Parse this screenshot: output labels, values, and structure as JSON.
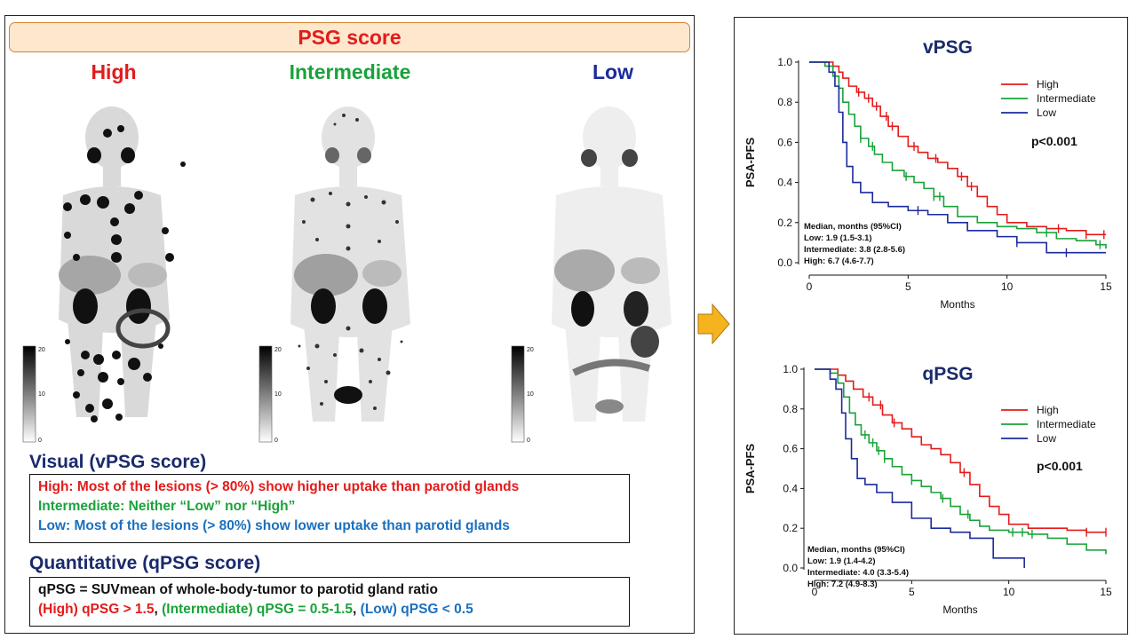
{
  "colors": {
    "high": "#e31b1b",
    "intermediate": "#1aa23a",
    "low": "#1b2a9c",
    "low_text": "#1a70c0",
    "navy": "#1a2a6c"
  },
  "header": {
    "title": "PSG score"
  },
  "columns": [
    {
      "label": "High",
      "color": "#e31b1b",
      "scale_ticks": [
        "20",
        "10",
        "0"
      ]
    },
    {
      "label": "Intermediate",
      "color": "#1aa23a",
      "scale_ticks": [
        "20",
        "10",
        "0"
      ]
    },
    {
      "label": "Low",
      "color": "#1b2a9c",
      "scale_ticks": [
        "20",
        "10",
        "0"
      ]
    }
  ],
  "visual": {
    "title": "Visual (vPSG score)",
    "lines": [
      {
        "text": "High: Most of the lesions (> 80%) show higher uptake than parotid glands",
        "color": "#e31b1b"
      },
      {
        "text": "Intermediate: Neither “Low” nor “High”",
        "color": "#1aa23a"
      },
      {
        "text": "Low: Most of the lesions (> 80%) show lower uptake than parotid glands",
        "color": "#1a70c0"
      }
    ]
  },
  "quantitative": {
    "title": "Quantitative (qPSG score)",
    "formula": "qPSG = SUVmean of whole-body-tumor to parotid gland ratio",
    "ranges": [
      {
        "text": "(High) qPSG > 1.5",
        "color": "#e31b1b"
      },
      {
        "text": ", ",
        "color": "#111111"
      },
      {
        "text": "(Intermediate) qPSG = 0.5-1.5",
        "color": "#1aa23a"
      },
      {
        "text": ", ",
        "color": "#111111"
      },
      {
        "text": "(Low) qPSG < 0.5",
        "color": "#1a70c0"
      }
    ]
  },
  "chart_data": [
    {
      "type": "line",
      "title": "vPSG",
      "xlabel": "Months",
      "ylabel": "PSA-PFS",
      "xlim": [
        0,
        15
      ],
      "ylim": [
        0,
        1
      ],
      "xticks": [
        "0",
        "5",
        "10",
        "15"
      ],
      "yticks": [
        "0.0",
        "0.2",
        "0.4",
        "0.6",
        "0.8",
        "1.0"
      ],
      "pvalue": "p<0.001",
      "legend": [
        "High",
        "Intermediate",
        "Low"
      ],
      "legend_position": "top-right",
      "median_text": [
        "Median, months (95%CI)",
        "Low: 1.9 (1.5-3.1)",
        "Intermediate: 3.8 (2.8-5.6)",
        "High: 6.7 (4.6-7.7)"
      ],
      "series": [
        {
          "name": "High",
          "color": "#e31b1b",
          "x": [
            0,
            0.8,
            1.2,
            1.5,
            1.7,
            2.0,
            2.4,
            2.8,
            3.2,
            3.6,
            4.0,
            4.5,
            5.0,
            5.5,
            6.0,
            6.5,
            7.0,
            7.5,
            8.0,
            8.5,
            9.0,
            9.5,
            10.0,
            11.0,
            12.0,
            13.0,
            14.0,
            15.0
          ],
          "y": [
            1.0,
            1.0,
            0.98,
            0.95,
            0.92,
            0.88,
            0.85,
            0.82,
            0.78,
            0.73,
            0.68,
            0.63,
            0.58,
            0.55,
            0.52,
            0.5,
            0.47,
            0.43,
            0.38,
            0.33,
            0.28,
            0.24,
            0.2,
            0.18,
            0.17,
            0.16,
            0.14,
            0.14
          ],
          "censor_x": [
            2.5,
            3.0,
            3.4,
            3.9,
            4.2,
            5.3,
            6.4,
            7.7,
            8.2,
            12.6,
            14.0,
            14.9
          ]
        },
        {
          "name": "Intermediate",
          "color": "#1aa23a",
          "x": [
            0,
            0.8,
            1.2,
            1.5,
            1.7,
            2.0,
            2.3,
            2.6,
            3.0,
            3.3,
            3.7,
            4.2,
            4.8,
            5.3,
            5.8,
            6.3,
            6.8,
            7.5,
            8.5,
            9.5,
            10.5,
            11.5,
            12.5,
            13.5,
            14.5,
            15.0
          ],
          "y": [
            1.0,
            0.98,
            0.93,
            0.87,
            0.8,
            0.74,
            0.68,
            0.62,
            0.58,
            0.54,
            0.5,
            0.46,
            0.43,
            0.4,
            0.37,
            0.33,
            0.28,
            0.23,
            0.2,
            0.18,
            0.17,
            0.15,
            0.12,
            0.11,
            0.09,
            0.07
          ],
          "censor_x": [
            2.6,
            3.2,
            4.9,
            6.3,
            6.6,
            12.0,
            14.7
          ]
        },
        {
          "name": "Low",
          "color": "#1b2a9c",
          "x": [
            0,
            1.0,
            1.3,
            1.5,
            1.7,
            1.9,
            2.2,
            2.6,
            3.2,
            4.0,
            5.0,
            6.0,
            7.0,
            8.0,
            9.5,
            10.5,
            12.0,
            15.0
          ],
          "y": [
            1.0,
            0.95,
            0.88,
            0.75,
            0.6,
            0.48,
            0.4,
            0.35,
            0.3,
            0.28,
            0.26,
            0.24,
            0.2,
            0.16,
            0.13,
            0.1,
            0.05,
            0.05
          ],
          "censor_x": [
            5.5,
            10.5,
            13.0
          ]
        }
      ]
    },
    {
      "type": "line",
      "title": "qPSG",
      "xlabel": "Months",
      "ylabel": "PSA-PFS",
      "xlim": [
        0,
        15
      ],
      "ylim": [
        0,
        1
      ],
      "xticks": [
        "0",
        "5",
        "10",
        "15"
      ],
      "yticks": [
        "0.0",
        "0.2",
        "0.4",
        "0.6",
        "0.8",
        "1.0"
      ],
      "pvalue": "p<0.001",
      "legend": [
        "High",
        "Intermediate",
        "Low"
      ],
      "legend_position": "top-right",
      "median_text": [
        "Median, months (95%CI)",
        "Low: 1.9 (1.4-4.2)",
        "Intermediate: 4.0 (3.3-5.4)",
        "High: 7.2 (4.9-8.3)"
      ],
      "series": [
        {
          "name": "High",
          "color": "#e31b1b",
          "x": [
            0,
            0.8,
            1.2,
            1.6,
            2.0,
            2.5,
            3.0,
            3.5,
            4.0,
            4.5,
            5.0,
            5.5,
            6.0,
            6.5,
            7.0,
            7.5,
            8.0,
            8.5,
            9.0,
            9.5,
            10.0,
            11.0,
            12.0,
            13.0,
            14.0,
            15.0
          ],
          "y": [
            1.0,
            1.0,
            0.97,
            0.94,
            0.9,
            0.86,
            0.82,
            0.77,
            0.73,
            0.7,
            0.66,
            0.62,
            0.6,
            0.57,
            0.53,
            0.48,
            0.42,
            0.36,
            0.31,
            0.27,
            0.22,
            0.2,
            0.2,
            0.19,
            0.18,
            0.18
          ],
          "censor_x": [
            2.8,
            3.4,
            4.1,
            7.7,
            14.0,
            15.0
          ]
        },
        {
          "name": "Intermediate",
          "color": "#1aa23a",
          "x": [
            0,
            0.8,
            1.2,
            1.5,
            1.8,
            2.1,
            2.4,
            2.8,
            3.2,
            3.6,
            4.0,
            4.5,
            5.0,
            5.5,
            6.0,
            6.5,
            7.0,
            7.5,
            8.0,
            8.5,
            9.0,
            10.0,
            11.0,
            12.0,
            13.0,
            14.0,
            15.0
          ],
          "y": [
            1.0,
            0.98,
            0.93,
            0.86,
            0.78,
            0.72,
            0.67,
            0.63,
            0.59,
            0.55,
            0.51,
            0.47,
            0.44,
            0.41,
            0.38,
            0.35,
            0.31,
            0.27,
            0.24,
            0.21,
            0.19,
            0.18,
            0.17,
            0.15,
            0.12,
            0.09,
            0.07
          ],
          "censor_x": [
            2.6,
            3.0,
            3.3,
            3.6,
            5.0,
            6.6,
            7.9,
            10.2,
            10.7,
            11.2
          ]
        },
        {
          "name": "Low",
          "color": "#1b2a9c",
          "x": [
            0,
            0.8,
            1.1,
            1.4,
            1.6,
            1.9,
            2.2,
            2.6,
            3.2,
            4.0,
            5.0,
            6.0,
            7.0,
            8.0,
            9.0,
            9.2,
            10.0,
            10.8
          ],
          "y": [
            1.0,
            0.95,
            0.9,
            0.78,
            0.65,
            0.55,
            0.45,
            0.42,
            0.38,
            0.33,
            0.25,
            0.2,
            0.18,
            0.15,
            0.15,
            0.05,
            0.05,
            0.0
          ],
          "censor_x": []
        }
      ]
    }
  ]
}
